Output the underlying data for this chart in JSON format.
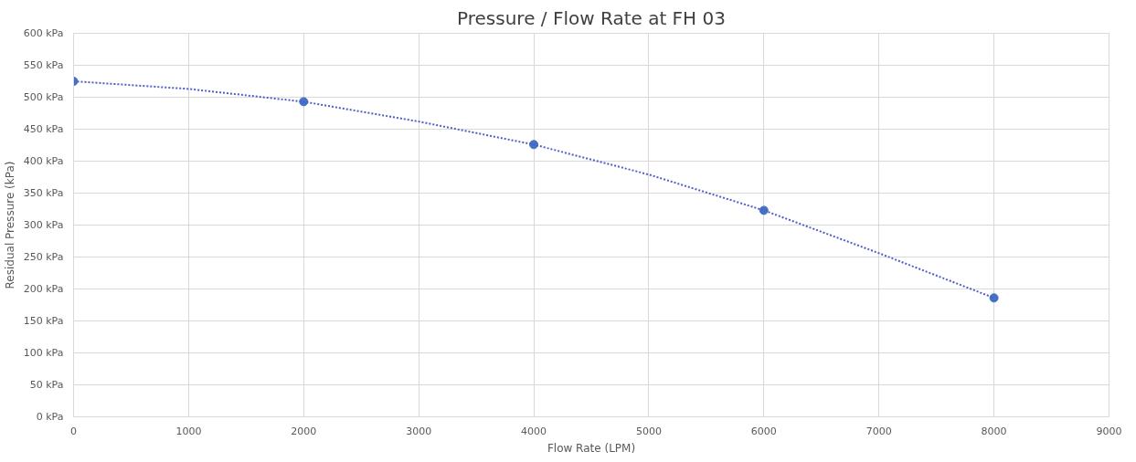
{
  "chart_data": {
    "type": "scatter",
    "title": "Pressure / Flow Rate at FH 03",
    "xlabel": "Flow Rate (LPM)",
    "ylabel": "Residual Pressure (kPa)",
    "x": [
      0,
      2000,
      4000,
      6000,
      8000
    ],
    "series": [
      {
        "color": "#4472c4",
        "marker": "circle",
        "values": [
          525,
          493,
          426,
          323,
          186
        ]
      },
      {
        "type": "line",
        "color": "#4f5ec8",
        "marker": "none",
        "line_style": "dotted",
        "x": [
          0,
          1000,
          2000,
          3000,
          4000,
          5000,
          6000,
          7000,
          8000
        ],
        "values": [
          525,
          513,
          493,
          462,
          426,
          379,
          323,
          256,
          186
        ]
      }
    ],
    "xlim": [
      0,
      9000
    ],
    "xticks": [
      0,
      1000,
      2000,
      3000,
      4000,
      5000,
      6000,
      7000,
      8000,
      9000
    ],
    "ylim": [
      0,
      600
    ],
    "yticks": [
      {
        "value": 0,
        "label": "0 kPa"
      },
      {
        "value": 50,
        "label": "50 kPa"
      },
      {
        "value": 100,
        "label": "100 kPa"
      },
      {
        "value": 150,
        "label": "150 kPa"
      },
      {
        "value": 200,
        "label": "200 kPa"
      },
      {
        "value": 250,
        "label": "250 kPa"
      },
      {
        "value": 300,
        "label": "300 kPa"
      },
      {
        "value": 350,
        "label": "350 kPa"
      },
      {
        "value": 400,
        "label": "400 kPa"
      },
      {
        "value": 450,
        "label": "450 kPa"
      },
      {
        "value": 500,
        "label": "500 kPa"
      },
      {
        "value": 550,
        "label": "550 kPa"
      },
      {
        "value": 600,
        "label": "600 kPa"
      }
    ],
    "grid": true
  }
}
